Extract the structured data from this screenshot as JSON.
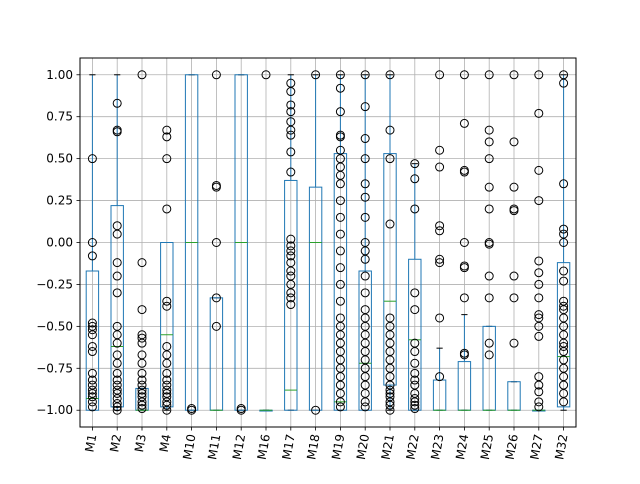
{
  "chart_data": {
    "type": "box",
    "categories": [
      "M1",
      "M2",
      "M3",
      "M4",
      "M10",
      "M11",
      "M12",
      "M16",
      "M17",
      "M18",
      "M19",
      "M20",
      "M21",
      "M22",
      "M23",
      "M24",
      "M25",
      "M26",
      "M27",
      "M32"
    ],
    "ylim": [
      -1.1,
      1.1
    ],
    "y_ticks": [
      -1.0,
      -0.75,
      -0.5,
      -0.25,
      0.0,
      0.25,
      0.5,
      0.75,
      1.0
    ],
    "y_tick_labels": [
      "−1.00",
      "−0.75",
      "−0.50",
      "−0.25",
      "0.00",
      "0.25",
      "0.50",
      "0.75",
      "1.00"
    ],
    "grid": true,
    "x_tick_rotation": 80,
    "colors": {
      "box": "#1f77b4",
      "median": "#2ca02c",
      "flier": "#000000",
      "grid": "#b0b0b0"
    },
    "boxes": [
      {
        "label": "M1",
        "q1": -1.0,
        "median": -0.93,
        "q3": -0.17,
        "whislo": -1.0,
        "whishi": 1.0,
        "fliers": [
          0.5,
          0.0,
          -0.08,
          -0.48,
          -0.5,
          -0.52,
          -0.55,
          -0.62,
          -0.65,
          -0.78,
          -0.82,
          -0.85,
          -0.88,
          -0.9,
          -0.92,
          -0.95,
          -0.98
        ]
      },
      {
        "label": "M2",
        "q1": -0.98,
        "median": -0.62,
        "q3": 0.22,
        "whislo": -1.0,
        "whishi": 1.0,
        "fliers": [
          0.83,
          0.67,
          0.66,
          0.1,
          0.05,
          -0.12,
          -0.2,
          -0.3,
          -0.5,
          -0.55,
          -0.6,
          -0.67,
          -0.72,
          -0.78,
          -0.82,
          -0.85,
          -0.88,
          -0.9,
          -0.93,
          -0.96,
          -0.98,
          -1.0
        ]
      },
      {
        "label": "M3",
        "q1": -1.0,
        "median": -1.0,
        "q3": -0.87,
        "whislo": -1.0,
        "whishi": -0.87,
        "fliers": [
          1.0,
          -0.12,
          -0.4,
          -0.55,
          -0.57,
          -0.6,
          -0.67,
          -0.72,
          -0.78,
          -0.82,
          -0.85,
          -0.88,
          -0.9,
          -0.92,
          -0.95,
          -0.97,
          -0.99
        ]
      },
      {
        "label": "M4",
        "q1": -0.98,
        "median": -0.55,
        "q3": 0.0,
        "whislo": -1.0,
        "whishi": 0.0,
        "fliers": [
          0.67,
          0.63,
          0.5,
          0.2,
          -0.35,
          -0.38,
          -0.62,
          -0.67,
          -0.72,
          -0.78,
          -0.82,
          -0.85,
          -0.88,
          -0.9,
          -0.92,
          -0.95,
          -0.97,
          -1.0
        ]
      },
      {
        "label": "M10",
        "q1": -1.0,
        "median": 0.0,
        "q3": 1.0,
        "whislo": -1.0,
        "whishi": 1.0,
        "fliers": [
          -1.0,
          -0.99
        ]
      },
      {
        "label": "M11",
        "q1": -1.0,
        "median": -1.0,
        "q3": -0.33,
        "whislo": -1.0,
        "whishi": -0.33,
        "fliers": [
          1.0,
          0.34,
          0.33,
          0.0,
          -0.33,
          -0.5
        ]
      },
      {
        "label": "M12",
        "q1": -1.0,
        "median": 0.0,
        "q3": 1.0,
        "whislo": -1.0,
        "whishi": 1.0,
        "fliers": [
          -1.0,
          -0.99
        ]
      },
      {
        "label": "M16",
        "q1": -1.0,
        "median": -1.0,
        "q3": -1.0,
        "whislo": -1.0,
        "whishi": -1.0,
        "fliers": [
          1.0
        ]
      },
      {
        "label": "M17",
        "q1": -1.0,
        "median": -0.88,
        "q3": 0.37,
        "whislo": -1.0,
        "whishi": 1.0,
        "fliers": [
          0.95,
          0.9,
          0.82,
          0.78,
          0.72,
          0.67,
          0.64,
          0.54,
          0.42,
          0.02,
          -0.02,
          -0.05,
          -0.08,
          -0.12,
          -0.17,
          -0.2,
          -0.25,
          -0.3,
          -0.33,
          -0.37
        ]
      },
      {
        "label": "M18",
        "q1": -1.0,
        "median": 0.0,
        "q3": 0.33,
        "whislo": -1.0,
        "whishi": 1.0,
        "fliers": [
          1.0,
          -1.0
        ]
      },
      {
        "label": "M19",
        "q1": -1.0,
        "median": -0.95,
        "q3": 0.53,
        "whislo": -1.0,
        "whishi": 1.0,
        "fliers": [
          1.0,
          0.92,
          0.78,
          0.64,
          0.63,
          0.55,
          0.5,
          0.45,
          0.4,
          0.35,
          0.25,
          0.15,
          0.05,
          -0.05,
          -0.15,
          -0.25,
          -0.35,
          -0.45,
          -0.5,
          -0.55,
          -0.6,
          -0.65,
          -0.7,
          -0.75,
          -0.8,
          -0.85,
          -0.9,
          -0.95,
          -0.98
        ]
      },
      {
        "label": "M20",
        "q1": -1.0,
        "median": -0.72,
        "q3": -0.17,
        "whislo": -1.0,
        "whishi": 1.0,
        "fliers": [
          1.0,
          0.81,
          0.62,
          0.5,
          0.35,
          0.27,
          0.15,
          0.0,
          -0.05,
          -0.1,
          -0.2,
          -0.3,
          -0.4,
          -0.45,
          -0.5,
          -0.55,
          -0.6,
          -0.65,
          -0.7,
          -0.75,
          -0.8,
          -0.85,
          -0.9,
          -0.95,
          -0.98
        ]
      },
      {
        "label": "M21",
        "q1": -0.85,
        "median": -0.35,
        "q3": 0.53,
        "whislo": -1.0,
        "whishi": 1.0,
        "fliers": [
          1.0,
          0.67,
          0.5,
          0.11,
          -0.45,
          -0.5,
          -0.55,
          -0.6,
          -0.65,
          -0.7,
          -0.75,
          -0.8,
          -0.85,
          -0.88,
          -0.9,
          -0.92,
          -0.95,
          -0.97,
          -1.0
        ]
      },
      {
        "label": "M22",
        "q1": -1.0,
        "median": -0.58,
        "q3": -0.1,
        "whislo": -1.0,
        "whishi": 0.47,
        "fliers": [
          0.47,
          0.38,
          0.2,
          -0.3,
          -0.4,
          -0.6,
          -0.65,
          -0.72,
          -0.78,
          -0.82,
          -0.85,
          -0.9,
          -0.93,
          -0.95,
          -0.97,
          -0.99
        ]
      },
      {
        "label": "M23",
        "q1": -1.0,
        "median": -1.0,
        "q3": -0.82,
        "whislo": -1.0,
        "whishi": -0.63,
        "fliers": [
          1.0,
          0.55,
          0.45,
          0.1,
          0.07,
          -0.1,
          -0.12,
          -0.45,
          -0.8
        ]
      },
      {
        "label": "M24",
        "q1": -1.0,
        "median": -1.0,
        "q3": -0.71,
        "whislo": -1.0,
        "whishi": -0.43,
        "fliers": [
          1.0,
          0.71,
          0.43,
          0.42,
          0.0,
          -0.14,
          -0.15,
          -0.33,
          -0.66,
          -0.67
        ]
      },
      {
        "label": "M25",
        "q1": -1.0,
        "median": -1.0,
        "q3": -0.5,
        "whislo": -1.0,
        "whishi": -0.5,
        "fliers": [
          1.0,
          0.67,
          0.6,
          0.5,
          0.33,
          0.2,
          0.0,
          -0.01,
          -0.2,
          -0.33,
          -0.6,
          -0.67
        ]
      },
      {
        "label": "M26",
        "q1": -1.0,
        "median": -1.0,
        "q3": -0.83,
        "whislo": -1.0,
        "whishi": -0.83,
        "fliers": [
          1.0,
          0.6,
          0.33,
          0.2,
          0.19,
          -0.2,
          -0.33,
          -0.6
        ]
      },
      {
        "label": "M27",
        "q1": -1.0,
        "median": -1.0,
        "q3": -1.0,
        "whislo": -1.0,
        "whishi": -1.0,
        "fliers": [
          1.0,
          0.77,
          0.43,
          0.25,
          -0.11,
          -0.18,
          -0.25,
          -0.33,
          -0.43,
          -0.45,
          -0.5,
          -0.56,
          -0.8,
          -0.85,
          -0.89,
          -0.95,
          -0.98
        ]
      },
      {
        "label": "M32",
        "q1": -0.98,
        "median": -0.68,
        "q3": -0.12,
        "whislo": -1.0,
        "whishi": 1.0,
        "fliers": [
          1.0,
          0.95,
          0.35,
          0.08,
          0.05,
          0.0,
          -0.17,
          -0.23,
          -0.35,
          -0.38,
          -0.4,
          -0.45,
          -0.5,
          -0.55,
          -0.6,
          -0.62,
          -0.65,
          -0.7,
          -0.75,
          -0.8,
          -0.85,
          -0.9,
          -0.95
        ]
      }
    ]
  }
}
